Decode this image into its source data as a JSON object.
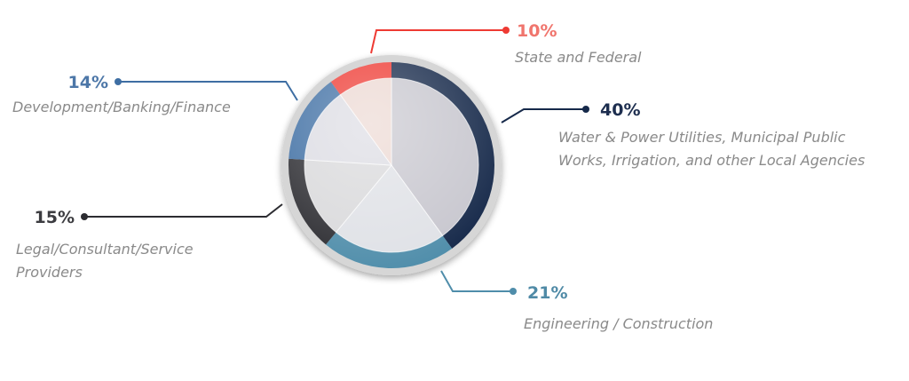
{
  "chart_data": {
    "type": "pie",
    "slices": [
      {
        "percent": 40,
        "value_label": "40%",
        "category_lines": [
          "Water & Power Utilities, Municipal Public",
          "Works, Irrigation, and other Local Agencies"
        ],
        "ring_color": "#16294a",
        "inner_color": "#c7c6ce",
        "label_color": "#1d2e4f"
      },
      {
        "percent": 21,
        "value_label": "21%",
        "category_lines": [
          "Engineering / Construction"
        ],
        "ring_color": "#4f8daa",
        "inner_color": "#dfe1e6",
        "label_color": "#4f8aa6"
      },
      {
        "percent": 15,
        "value_label": "15%",
        "category_lines": [
          "Legal/Consultant/Service",
          "Providers"
        ],
        "ring_color": "#2c2c31",
        "inner_color": "#d9d9db",
        "label_color": "#3c3c40"
      },
      {
        "percent": 14,
        "value_label": "14%",
        "category_lines": [
          "Development/Banking/Finance"
        ],
        "ring_color": "#3e6ea3",
        "inner_color": "#dcdce3",
        "label_color": "#4d77a8"
      },
      {
        "percent": 10,
        "value_label": "10%",
        "category_lines": [
          "State and Federal"
        ],
        "ring_color": "#ee3a33",
        "inner_color": "#ecd8d2",
        "label_color": "#f0756d"
      }
    ],
    "start_angle_deg": 0,
    "direction": "clockwise",
    "legend": "none",
    "grid": false,
    "bezel_color": "#d6d6d6"
  }
}
